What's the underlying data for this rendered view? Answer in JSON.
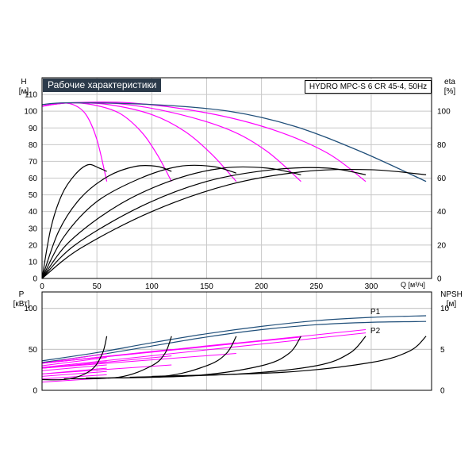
{
  "header": {
    "title": "Рабочие характеристики",
    "model": "HYDRO MPC-S 6 CR 45-4, 50Hz"
  },
  "colors": {
    "magenta": "#ff00ff",
    "blue": "#1f4e79",
    "black": "#000000",
    "title_bg": "#2b3a4a"
  },
  "chart_data": [
    {
      "type": "line",
      "title": "Рабочие характеристики",
      "xlabel": "Q [м³/ч]",
      "ylabel": "H [м]",
      "y2label": "eta [%]",
      "x_ticks": [
        0,
        50,
        100,
        150,
        200,
        250,
        300
      ],
      "y_ticks": [
        0,
        10,
        20,
        30,
        40,
        50,
        60,
        70,
        80,
        90,
        100,
        110
      ],
      "y2_ticks": [
        0,
        20,
        40,
        60,
        80,
        100
      ],
      "xlim": [
        0,
        355
      ],
      "ylim": [
        0,
        120
      ],
      "y2lim": [
        0,
        120
      ],
      "grid": true,
      "series": [
        {
          "color": "magenta",
          "axis": "H",
          "points": [
            [
              0,
              103
            ],
            [
              15,
              104.8
            ],
            [
              28,
              104
            ],
            [
              40,
              98
            ],
            [
              50,
              83
            ],
            [
              59,
              58
            ]
          ]
        },
        {
          "color": "magenta",
          "axis": "H",
          "points": [
            [
              0,
              103
            ],
            [
              20,
              105
            ],
            [
              45,
              104
            ],
            [
              70,
              99
            ],
            [
              90,
              88
            ],
            [
              105,
              74
            ],
            [
              118,
              58
            ]
          ]
        },
        {
          "color": "magenta",
          "axis": "H",
          "points": [
            [
              0,
              103
            ],
            [
              25,
              105
            ],
            [
              60,
              104
            ],
            [
              100,
              98
            ],
            [
              130,
              88
            ],
            [
              155,
              74
            ],
            [
              177,
              58
            ]
          ]
        },
        {
          "color": "magenta",
          "axis": "H",
          "points": [
            [
              0,
              103
            ],
            [
              25,
              105
            ],
            [
              70,
              104.5
            ],
            [
              120,
              99
            ],
            [
              170,
              89
            ],
            [
              205,
              76
            ],
            [
              236,
              58
            ]
          ]
        },
        {
          "color": "magenta",
          "axis": "H",
          "points": [
            [
              0,
              103
            ],
            [
              25,
              105
            ],
            [
              80,
              105
            ],
            [
              150,
              99
            ],
            [
              210,
              89
            ],
            [
              260,
              75
            ],
            [
              295,
              58
            ]
          ]
        },
        {
          "color": "blue",
          "axis": "H",
          "points": [
            [
              0,
              104
            ],
            [
              25,
              105
            ],
            [
              100,
              104
            ],
            [
              170,
              100
            ],
            [
              230,
              91
            ],
            [
              290,
              76
            ],
            [
              350,
              58
            ]
          ]
        },
        {
          "color": "black",
          "axis": "eta",
          "points": [
            [
              0,
              0
            ],
            [
              8,
              30
            ],
            [
              18,
              50
            ],
            [
              30,
              62
            ],
            [
              42,
              68
            ],
            [
              52,
              66
            ],
            [
              59,
              64
            ]
          ]
        },
        {
          "color": "black",
          "axis": "eta",
          "points": [
            [
              0,
              0
            ],
            [
              15,
              28
            ],
            [
              35,
              48
            ],
            [
              60,
              61
            ],
            [
              85,
              67
            ],
            [
              105,
              67
            ],
            [
              118,
              64
            ]
          ]
        },
        {
          "color": "black",
          "axis": "eta",
          "points": [
            [
              0,
              0
            ],
            [
              20,
              25
            ],
            [
              50,
              46
            ],
            [
              90,
              60
            ],
            [
              125,
              67
            ],
            [
              155,
              67
            ],
            [
              177,
              63
            ]
          ]
        },
        {
          "color": "black",
          "axis": "eta",
          "points": [
            [
              0,
              0
            ],
            [
              25,
              22
            ],
            [
              70,
              44
            ],
            [
              120,
              59
            ],
            [
              165,
              66
            ],
            [
              205,
              66
            ],
            [
              236,
              62
            ]
          ]
        },
        {
          "color": "black",
          "axis": "eta",
          "points": [
            [
              0,
              0
            ],
            [
              30,
              20
            ],
            [
              90,
              43
            ],
            [
              150,
              58
            ],
            [
              210,
              65
            ],
            [
              260,
              66
            ],
            [
              295,
              62
            ]
          ]
        },
        {
          "color": "black",
          "axis": "eta",
          "points": [
            [
              0,
              0
            ],
            [
              35,
              18
            ],
            [
              100,
              40
            ],
            [
              170,
              56
            ],
            [
              240,
              64
            ],
            [
              300,
              65
            ],
            [
              350,
              62
            ]
          ]
        }
      ]
    },
    {
      "type": "line",
      "xlabel": "Q [м³/ч]",
      "ylabel": "P [кВт]",
      "y2label": "NPSH [м]",
      "y_ticks": [
        0,
        50,
        100
      ],
      "y2_ticks": [
        0,
        5,
        10
      ],
      "xlim": [
        0,
        355
      ],
      "ylim": [
        0,
        120
      ],
      "y2lim": [
        0,
        12
      ],
      "grid": true,
      "annotations": [
        "P1",
        "P2"
      ],
      "series": [
        {
          "name": "P1",
          "color": "blue",
          "axis": "P",
          "points": [
            [
              0,
              36
            ],
            [
              50,
              46
            ],
            [
              100,
              58
            ],
            [
              150,
              69
            ],
            [
              200,
              78
            ],
            [
              250,
              85
            ],
            [
              300,
              89
            ],
            [
              350,
              91
            ]
          ]
        },
        {
          "name": "P2",
          "color": "blue",
          "axis": "P",
          "points": [
            [
              0,
              34
            ],
            [
              50,
              43
            ],
            [
              100,
              54
            ],
            [
              150,
              65
            ],
            [
              200,
              74
            ],
            [
              250,
              80
            ],
            [
              300,
              83
            ],
            [
              350,
              84
            ]
          ]
        },
        {
          "color": "magenta",
          "axis": "P",
          "points": [
            [
              0,
              33
            ],
            [
              59,
              45
            ]
          ]
        },
        {
          "color": "magenta",
          "axis": "P",
          "points": [
            [
              0,
              30
            ],
            [
              59,
              40
            ]
          ]
        },
        {
          "color": "magenta",
          "axis": "P",
          "points": [
            [
              0,
              27
            ],
            [
              59,
              35
            ]
          ]
        },
        {
          "color": "magenta",
          "axis": "P",
          "points": [
            [
              0,
              24
            ],
            [
              59,
              31
            ]
          ]
        },
        {
          "color": "magenta",
          "axis": "P",
          "points": [
            [
              0,
              20
            ],
            [
              59,
              27
            ]
          ]
        },
        {
          "color": "magenta",
          "axis": "P",
          "points": [
            [
              0,
              17
            ],
            [
              59,
              23
            ]
          ]
        },
        {
          "color": "magenta",
          "axis": "P",
          "points": [
            [
              0,
              14
            ],
            [
              59,
              19
            ]
          ]
        },
        {
          "color": "magenta",
          "axis": "P",
          "points": [
            [
              0,
              10
            ],
            [
              59,
              15
            ]
          ]
        },
        {
          "color": "magenta",
          "axis": "P",
          "points": [
            [
              0,
              33
            ],
            [
              118,
              50
            ]
          ]
        },
        {
          "color": "magenta",
          "axis": "P",
          "points": [
            [
              0,
              27
            ],
            [
              118,
              42
            ]
          ]
        },
        {
          "color": "magenta",
          "axis": "P",
          "points": [
            [
              0,
              20
            ],
            [
              118,
              31
            ]
          ]
        },
        {
          "color": "magenta",
          "axis": "P",
          "points": [
            [
              0,
              33
            ],
            [
              177,
              58
            ]
          ]
        },
        {
          "color": "magenta",
          "axis": "P",
          "points": [
            [
              0,
              27
            ],
            [
              177,
              45
            ]
          ]
        },
        {
          "color": "magenta",
          "axis": "P",
          "points": [
            [
              0,
              33
            ],
            [
              236,
              65
            ]
          ]
        },
        {
          "color": "magenta",
          "axis": "P",
          "points": [
            [
              0,
              33
            ],
            [
              295,
              74
            ]
          ]
        },
        {
          "color": "magenta",
          "axis": "P",
          "points": [
            [
              0,
              28
            ],
            [
              295,
              70
            ]
          ]
        },
        {
          "color": "black",
          "axis": "NPSH",
          "points": [
            [
              0,
              1.3
            ],
            [
              25,
              1.4
            ],
            [
              45,
              2.5
            ],
            [
              55,
              4.5
            ],
            [
              59,
              6.6
            ]
          ]
        },
        {
          "color": "black",
          "axis": "NPSH",
          "points": [
            [
              20,
              1.4
            ],
            [
              70,
              1.6
            ],
            [
              100,
              3
            ],
            [
              112,
              4.5
            ],
            [
              118,
              6.6
            ]
          ]
        },
        {
          "color": "black",
          "axis": "NPSH",
          "points": [
            [
              40,
              1.5
            ],
            [
              110,
              1.7
            ],
            [
              150,
              3
            ],
            [
              168,
              4.5
            ],
            [
              177,
              6.6
            ]
          ]
        },
        {
          "color": "black",
          "axis": "NPSH",
          "points": [
            [
              60,
              1.5
            ],
            [
              140,
              1.8
            ],
            [
              200,
              3
            ],
            [
              225,
              4.5
            ],
            [
              236,
              6.6
            ]
          ]
        },
        {
          "color": "black",
          "axis": "NPSH",
          "points": [
            [
              80,
              1.6
            ],
            [
              180,
              2
            ],
            [
              250,
              3
            ],
            [
              280,
              4.5
            ],
            [
              295,
              6.6
            ]
          ]
        },
        {
          "color": "black",
          "axis": "NPSH",
          "points": [
            [
              100,
              1.7
            ],
            [
              220,
              2.2
            ],
            [
              300,
              3.4
            ],
            [
              335,
              4.8
            ],
            [
              350,
              6.6
            ]
          ]
        }
      ]
    }
  ]
}
